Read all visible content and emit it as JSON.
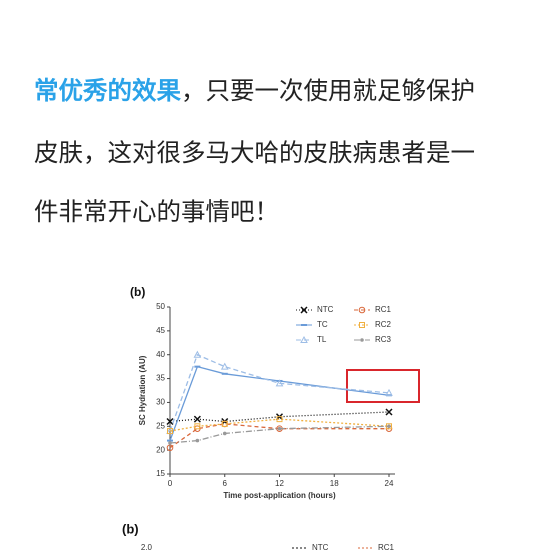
{
  "paragraph": {
    "lines": [
      {
        "highlight": "常优秀的效果",
        "text": "，只要一次使用就足够保护"
      },
      {
        "text": "皮肤，这对很多马大哈的皮肤病患者是一"
      },
      {
        "text": "件非常开心的事情吧！"
      }
    ]
  },
  "chart_data": [
    {
      "type": "line",
      "panel_label": "(b)",
      "y_label": "SC Hydration (AU)",
      "x_label": "Time post-application (hours)",
      "x": [
        0,
        3,
        6,
        12,
        24
      ],
      "xlim": [
        0,
        24
      ],
      "xticks": [
        0,
        6,
        12,
        18,
        24
      ],
      "ylim": [
        15,
        50
      ],
      "yticks": [
        15,
        20,
        25,
        30,
        35,
        40,
        45,
        50
      ],
      "series": [
        {
          "name": "NTC",
          "color": "#111111",
          "marker": "x",
          "dash": "1,2",
          "values": [
            26,
            26.5,
            26,
            27,
            28
          ]
        },
        {
          "name": "TC",
          "color": "#6a9bd8",
          "marker": "bar",
          "dash": "",
          "values": [
            22,
            37.5,
            36,
            34.5,
            31.5
          ]
        },
        {
          "name": "TL",
          "color": "#9dbde6",
          "marker": "triangle",
          "dash": "5,3",
          "values": [
            24,
            40,
            37.5,
            34,
            32
          ]
        },
        {
          "name": "RC1",
          "color": "#d9673a",
          "marker": "circle",
          "dash": "4,3",
          "values": [
            20.5,
            24.5,
            25.5,
            24.5,
            24.5
          ]
        },
        {
          "name": "RC2",
          "color": "#f0b040",
          "marker": "square",
          "dash": "2,2",
          "values": [
            24,
            25,
            25.5,
            26.5,
            25
          ]
        },
        {
          "name": "RC3",
          "color": "#999999",
          "marker": "dot",
          "dash": "6,2,1,2",
          "values": [
            21.5,
            22,
            23.5,
            24.5,
            25
          ]
        }
      ]
    },
    {
      "type": "line",
      "panel_label": "(b)",
      "yticks": [
        {
          "value": 2,
          "label": "2.0"
        }
      ],
      "series": [
        {
          "name": "NTC",
          "color": "#111111"
        },
        {
          "name": "RC1",
          "color": "#d9673a"
        }
      ]
    }
  ]
}
